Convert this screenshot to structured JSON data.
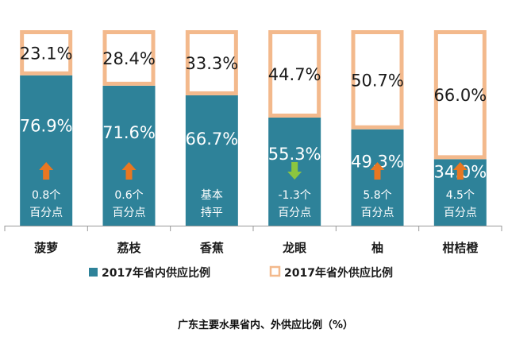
{
  "chart_data": {
    "type": "bar",
    "stacked": true,
    "categories": [
      "菠萝",
      "荔枝",
      "香蕉",
      "龙眼",
      "柚",
      "柑桔橙"
    ],
    "series": [
      {
        "name": "2017年省内供应比例",
        "values": [
          76.9,
          71.6,
          66.7,
          55.3,
          49.3,
          34.0
        ],
        "labels": [
          "76.9%",
          "71.6%",
          "66.7%",
          "55.3%",
          "49.3%",
          "34.0%"
        ]
      },
      {
        "name": "2017年省外供应比例",
        "values": [
          23.1,
          28.4,
          33.3,
          44.7,
          50.7,
          66.0
        ],
        "labels": [
          "23.1%",
          "28.4%",
          "33.3%",
          "44.7%",
          "50.7%",
          "66.0%"
        ]
      }
    ],
    "changes": [
      {
        "direction": "up",
        "line1": "0.8个",
        "line2": "百分点"
      },
      {
        "direction": "up",
        "line1": "0.6个",
        "line2": "百分点"
      },
      {
        "direction": "none",
        "line1": "基本",
        "line2": "持平"
      },
      {
        "direction": "down",
        "line1": "-1.3个",
        "line2": "百分点"
      },
      {
        "direction": "up",
        "line1": "5.8个",
        "line2": "百分点"
      },
      {
        "direction": "up",
        "line1": "4.5个",
        "line2": "百分点"
      }
    ],
    "ylim": [
      0,
      100
    ],
    "legend_position": "bottom",
    "title": "广东主要水果省内、外供应比例（%）"
  },
  "colors": {
    "inner": "#2E8299",
    "outer_border": "#F3B98C",
    "arrow_up": "#E87722",
    "arrow_down": "#8CC63F",
    "text_light": "#ffffff",
    "text_dark": "#1a1a1a"
  }
}
